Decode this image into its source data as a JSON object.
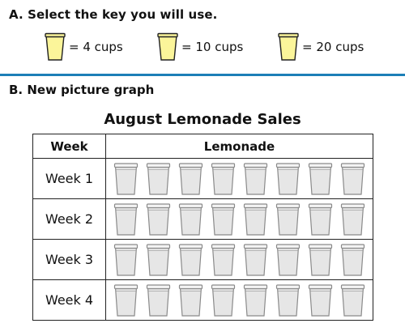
{
  "section_a": {
    "heading": "A. Select the key you will use.",
    "keys": [
      {
        "label": "= 4 cups",
        "icon": "lemonade-cup-icon",
        "fill_color": "#fbf59a"
      },
      {
        "label": "= 10 cups",
        "icon": "lemonade-cup-icon",
        "fill_color": "#fbf59a"
      },
      {
        "label": "= 20 cups",
        "icon": "lemonade-cup-icon",
        "fill_color": "#fbf59a"
      }
    ]
  },
  "section_b": {
    "heading": "B. New picture graph",
    "title": "August Lemonade Sales",
    "columns": [
      "Week",
      "Lemonade"
    ],
    "rows": [
      {
        "week": "Week 1",
        "cups": 8
      },
      {
        "week": "Week 2",
        "cups": 8
      },
      {
        "week": "Week 3",
        "cups": 8
      },
      {
        "week": "Week 4",
        "cups": 8
      }
    ],
    "empty_cup_icon": "empty-cup-icon",
    "empty_cup_color": "#e6e6e6"
  },
  "colors": {
    "divider": "#1c7fb7",
    "lemonade": "#fbf59a",
    "empty_cup": "#e6e6e6"
  }
}
